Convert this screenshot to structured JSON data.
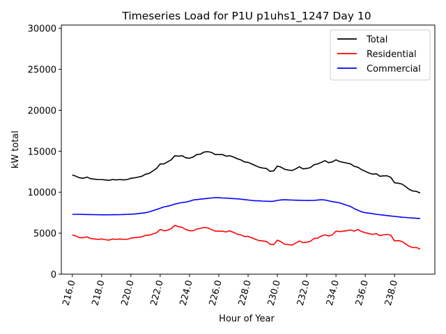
{
  "chart_data": {
    "type": "line",
    "title": "Timeseries Load for P1U p1uhs1_1247  Day 10",
    "xlabel": "Hour of Year",
    "ylabel": "kW total",
    "xlim": [
      215.25,
      240.75
    ],
    "ylim": [
      0,
      30400
    ],
    "xticks": [
      216,
      218,
      220,
      222,
      224,
      226,
      228,
      230,
      232,
      234,
      236,
      238
    ],
    "xtick_labels": [
      "216.0",
      "218.0",
      "220.0",
      "222.0",
      "224.0",
      "226.0",
      "228.0",
      "230.0",
      "232.0",
      "234.0",
      "236.0",
      "238.0"
    ],
    "yticks": [
      0,
      5000,
      10000,
      15000,
      20000,
      25000,
      30000
    ],
    "ytick_labels": [
      "0",
      "5000",
      "10000",
      "15000",
      "20000",
      "25000",
      "30000"
    ],
    "legend_position": "top-right",
    "x": [
      216.0,
      216.25,
      216.5,
      216.75,
      217.0,
      217.25,
      217.5,
      217.75,
      218.0,
      218.25,
      218.5,
      218.75,
      219.0,
      219.25,
      219.5,
      219.75,
      220.0,
      220.25,
      220.5,
      220.75,
      221.0,
      221.25,
      221.5,
      221.75,
      222.0,
      222.25,
      222.5,
      222.75,
      223.0,
      223.25,
      223.5,
      223.75,
      224.0,
      224.25,
      224.5,
      224.75,
      225.0,
      225.25,
      225.5,
      225.75,
      226.0,
      226.25,
      226.5,
      226.75,
      227.0,
      227.25,
      227.5,
      227.75,
      228.0,
      228.25,
      228.5,
      228.75,
      229.0,
      229.25,
      229.5,
      229.75,
      230.0,
      230.25,
      230.5,
      230.75,
      231.0,
      231.25,
      231.5,
      231.75,
      232.0,
      232.25,
      232.5,
      232.75,
      233.0,
      233.25,
      233.5,
      233.75,
      234.0,
      234.25,
      234.5,
      234.75,
      235.0,
      235.25,
      235.5,
      235.75,
      236.0,
      236.25,
      236.5,
      236.75,
      237.0,
      237.25,
      237.5,
      237.75,
      238.0,
      238.25,
      238.5,
      238.75,
      239.0,
      239.25,
      239.5,
      239.75
    ],
    "series": [
      {
        "name": "Total",
        "color": "#000000",
        "values": [
          12100,
          11950,
          11750,
          11700,
          11850,
          11650,
          11600,
          11550,
          11550,
          11500,
          11450,
          11550,
          11500,
          11550,
          11500,
          11550,
          11700,
          11750,
          11850,
          11950,
          12200,
          12300,
          12600,
          12900,
          13450,
          13450,
          13700,
          13950,
          14450,
          14400,
          14450,
          14200,
          14150,
          14300,
          14600,
          14650,
          14900,
          14950,
          14850,
          14600,
          14600,
          14600,
          14400,
          14450,
          14300,
          14100,
          13950,
          13700,
          13650,
          13450,
          13250,
          13050,
          12950,
          12900,
          12550,
          12600,
          13200,
          13050,
          12800,
          12700,
          12650,
          12850,
          13100,
          12850,
          12900,
          13000,
          13350,
          13450,
          13650,
          13850,
          13600,
          13700,
          13950,
          13750,
          13650,
          13550,
          13450,
          13150,
          13050,
          12750,
          12550,
          12350,
          12200,
          12250,
          11950,
          12000,
          12000,
          11800,
          11150,
          11100,
          11000,
          10700,
          10350,
          10150,
          10100,
          9900
        ]
      },
      {
        "name": "Residential",
        "color": "#ff0000",
        "values": [
          4800,
          4650,
          4450,
          4450,
          4550,
          4350,
          4300,
          4250,
          4300,
          4200,
          4150,
          4300,
          4250,
          4300,
          4250,
          4250,
          4400,
          4450,
          4500,
          4550,
          4750,
          4750,
          4900,
          5050,
          5450,
          5300,
          5350,
          5550,
          5950,
          5800,
          5700,
          5450,
          5300,
          5300,
          5500,
          5600,
          5700,
          5650,
          5450,
          5250,
          5250,
          5250,
          5150,
          5300,
          5100,
          4900,
          4800,
          4600,
          4600,
          4450,
          4250,
          4100,
          4050,
          4000,
          3650,
          3600,
          4150,
          3950,
          3650,
          3600,
          3550,
          3800,
          4050,
          3850,
          3900,
          4000,
          4350,
          4400,
          4650,
          4800,
          4650,
          4800,
          5250,
          5200,
          5250,
          5300,
          5400,
          5250,
          5450,
          5200,
          5050,
          4950,
          4850,
          4950,
          4700,
          4800,
          4850,
          4750,
          4050,
          4100,
          4000,
          3700,
          3400,
          3250,
          3250,
          3050
        ]
      },
      {
        "name": "Commercial",
        "color": "#0000ff",
        "values": [
          7300,
          7300,
          7300,
          7290,
          7280,
          7270,
          7260,
          7250,
          7240,
          7240,
          7240,
          7250,
          7250,
          7260,
          7280,
          7300,
          7320,
          7340,
          7400,
          7450,
          7500,
          7600,
          7750,
          7900,
          8050,
          8200,
          8300,
          8400,
          8550,
          8650,
          8750,
          8800,
          8900,
          9050,
          9100,
          9150,
          9200,
          9250,
          9300,
          9330,
          9330,
          9300,
          9280,
          9250,
          9220,
          9200,
          9150,
          9100,
          9050,
          9000,
          8950,
          8950,
          8920,
          8900,
          8880,
          8900,
          9000,
          9060,
          9080,
          9060,
          9040,
          9030,
          9020,
          9000,
          8990,
          8990,
          9000,
          9050,
          9080,
          9050,
          8950,
          8850,
          8780,
          8700,
          8550,
          8400,
          8250,
          8000,
          7800,
          7600,
          7500,
          7450,
          7380,
          7300,
          7250,
          7200,
          7150,
          7100,
          7050,
          7000,
          6950,
          6920,
          6880,
          6850,
          6820,
          6780
        ]
      }
    ]
  }
}
